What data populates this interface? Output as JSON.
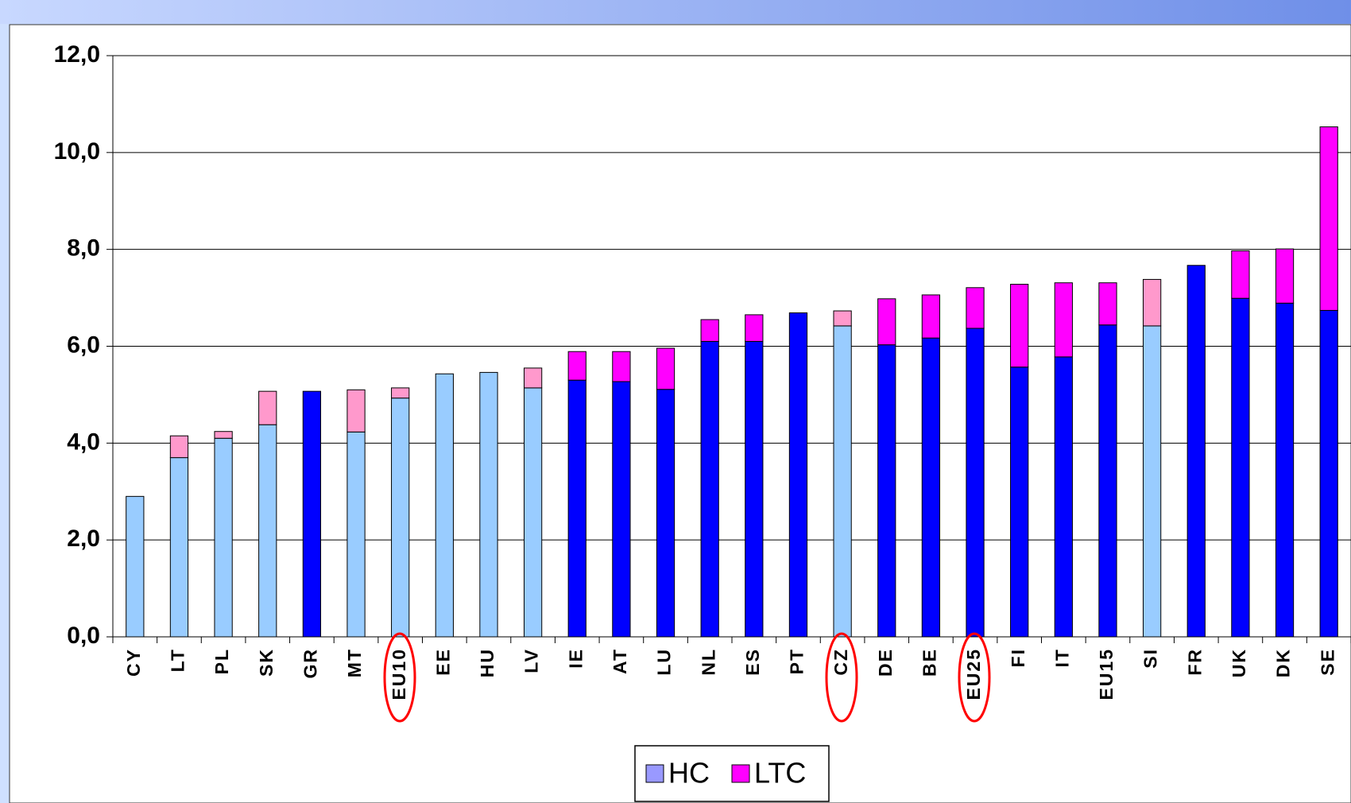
{
  "chart_data": {
    "type": "stacked_bar",
    "categories": [
      "CY",
      "LT",
      "PL",
      "SK",
      "GR",
      "MT",
      "EU10",
      "EE",
      "HU",
      "LV",
      "IE",
      "AT",
      "LU",
      "NL",
      "ES",
      "PT",
      "CZ",
      "DE",
      "BE",
      "EU25",
      "FI",
      "IT",
      "EU15",
      "SI",
      "FR",
      "UK",
      "DK",
      "SE"
    ],
    "series": [
      {
        "name": "HC",
        "color": "#9999ff",
        "values": [
          2.9,
          3.7,
          4.1,
          4.38,
          5.07,
          4.23,
          4.93,
          5.43,
          5.46,
          5.14,
          5.3,
          5.27,
          5.11,
          6.1,
          6.1,
          6.69,
          6.42,
          6.03,
          6.17,
          6.37,
          5.57,
          5.78,
          6.44,
          6.42,
          7.67,
          6.99,
          6.89,
          6.74
        ],
        "bar_colors": [
          "#99ccff",
          "#99ccff",
          "#99ccff",
          "#99ccff",
          "#0000ff",
          "#99ccff",
          "#99ccff",
          "#99ccff",
          "#99ccff",
          "#99ccff",
          "#0000ff",
          "#0000ff",
          "#0000ff",
          "#0000ff",
          "#0000ff",
          "#0000ff",
          "#99ccff",
          "#0000ff",
          "#0000ff",
          "#0000ff",
          "#0000ff",
          "#0000ff",
          "#0000ff",
          "#99ccff",
          "#0000ff",
          "#0000ff",
          "#0000ff",
          "#0000ff"
        ]
      },
      {
        "name": "LTC",
        "color": "#ff00ff",
        "values": [
          0,
          0.45,
          0.14,
          0.69,
          0,
          0.87,
          0.21,
          0,
          0,
          0.41,
          0.59,
          0.62,
          0.85,
          0.45,
          0.55,
          0,
          0.31,
          0.95,
          0.89,
          0.84,
          1.71,
          1.53,
          0.87,
          0.96,
          0,
          0.98,
          1.12,
          3.79
        ],
        "bar_colors": [
          "#ff99cc",
          "#ff99cc",
          "#ff99cc",
          "#ff99cc",
          "#ff00ff",
          "#ff99cc",
          "#ff99cc",
          "#ff99cc",
          "#ff99cc",
          "#ff99cc",
          "#ff00ff",
          "#ff00ff",
          "#ff00ff",
          "#ff00ff",
          "#ff00ff",
          "#ff00ff",
          "#ff99cc",
          "#ff00ff",
          "#ff00ff",
          "#ff00ff",
          "#ff00ff",
          "#ff00ff",
          "#ff00ff",
          "#ff99cc",
          "#ff00ff",
          "#ff00ff",
          "#ff00ff",
          "#ff00ff"
        ]
      }
    ],
    "ylim": [
      0,
      12
    ],
    "yticks": [
      {
        "value": 0,
        "label": "0,0"
      },
      {
        "value": 2,
        "label": "2,0"
      },
      {
        "value": 4,
        "label": "4,0"
      },
      {
        "value": 6,
        "label": "6,0"
      },
      {
        "value": 8,
        "label": "8,0"
      },
      {
        "value": 10,
        "label": "10,0"
      },
      {
        "value": 12,
        "label": "12,0"
      }
    ],
    "grid": true,
    "legend": "bottom"
  }
}
